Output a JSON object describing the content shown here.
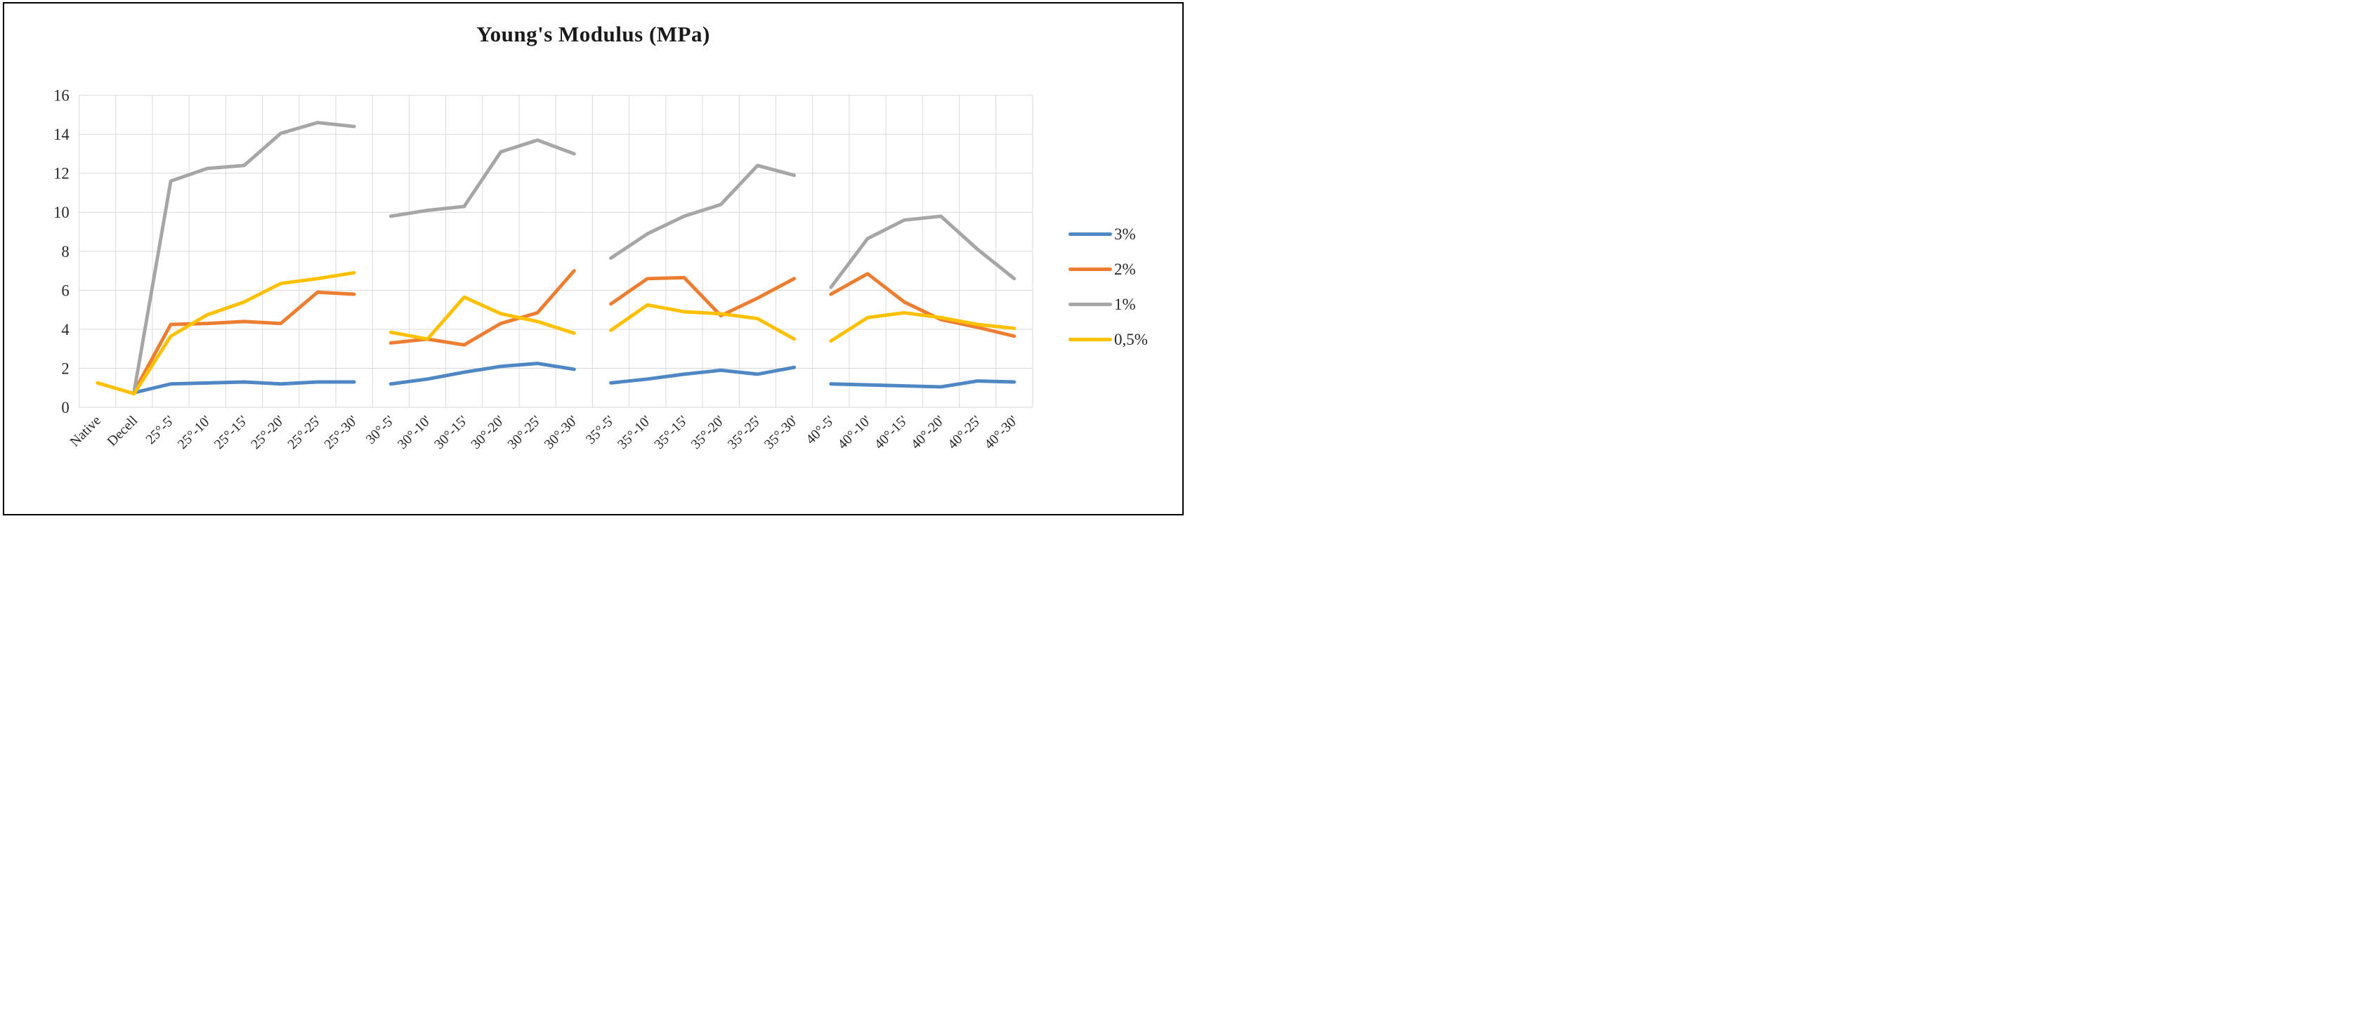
{
  "figure": {
    "title": "Young's Modulus (MPa)"
  },
  "chart_data": {
    "type": "line",
    "title": "Young's Modulus (MPa)",
    "xlabel": "",
    "ylabel": "",
    "ylim": [
      0,
      16
    ],
    "ytick_step": 2,
    "grid": true,
    "legend_position": "right",
    "gaps_between_groups": true,
    "group_segments": [
      [
        0,
        7
      ],
      [
        8,
        13
      ],
      [
        14,
        19
      ],
      [
        20,
        25
      ]
    ],
    "categories": [
      "Native",
      "Decell",
      "25°-5'",
      "25°-10'",
      "25°-15'",
      "25°-20'",
      "25°-25'",
      "25°-30'",
      "30°-5'",
      "30°-10'",
      "30°-15'",
      "30°-20'",
      "30°-25'",
      "30°-30'",
      "35°-5'",
      "35°-10'",
      "35°-15'",
      "35°-20'",
      "35°-25'",
      "35°-30'",
      "40°-5'",
      "40°-10'",
      "40°-15'",
      "40°-20'",
      "40°-25'",
      "40°-30'"
    ],
    "series": [
      {
        "name": "3%",
        "color": "#4E87C3",
        "values": [
          null,
          0.75,
          1.2,
          1.25,
          1.3,
          1.2,
          1.3,
          1.3,
          1.2,
          1.45,
          1.8,
          2.1,
          2.25,
          1.95,
          1.25,
          1.45,
          1.7,
          1.9,
          1.7,
          2.05,
          1.2,
          1.15,
          1.1,
          1.05,
          1.35,
          1.3
        ]
      },
      {
        "name": "2%",
        "color": "#ED7D31",
        "values": [
          null,
          0.8,
          4.25,
          4.3,
          4.4,
          4.3,
          5.9,
          5.8,
          3.3,
          3.5,
          3.2,
          4.3,
          4.85,
          7.0,
          5.3,
          6.6,
          6.65,
          4.7,
          5.6,
          6.6,
          5.8,
          6.85,
          5.4,
          4.5,
          4.1,
          3.65
        ]
      },
      {
        "name": "1%",
        "color": "#A6A6A6",
        "values": [
          null,
          0.8,
          11.6,
          12.25,
          12.4,
          14.05,
          14.6,
          14.4,
          9.8,
          10.1,
          10.3,
          13.1,
          13.7,
          13.0,
          7.65,
          8.9,
          9.8,
          10.4,
          12.4,
          11.9,
          6.15,
          8.65,
          9.6,
          9.8,
          8.1,
          6.6
        ]
      },
      {
        "name": "0,5%",
        "color": "#FFC000",
        "values": [
          1.25,
          0.7,
          3.65,
          4.75,
          5.4,
          6.35,
          6.6,
          6.9,
          3.85,
          3.5,
          5.65,
          4.8,
          4.4,
          3.8,
          3.95,
          5.25,
          4.9,
          4.8,
          4.55,
          3.5,
          3.4,
          4.6,
          4.85,
          4.6,
          4.25,
          4.05
        ]
      }
    ]
  },
  "colors": {
    "grid": "#D9D9D9",
    "axis_text": "#262626",
    "frame_border": "#000000",
    "background": "#FFFFFF"
  }
}
